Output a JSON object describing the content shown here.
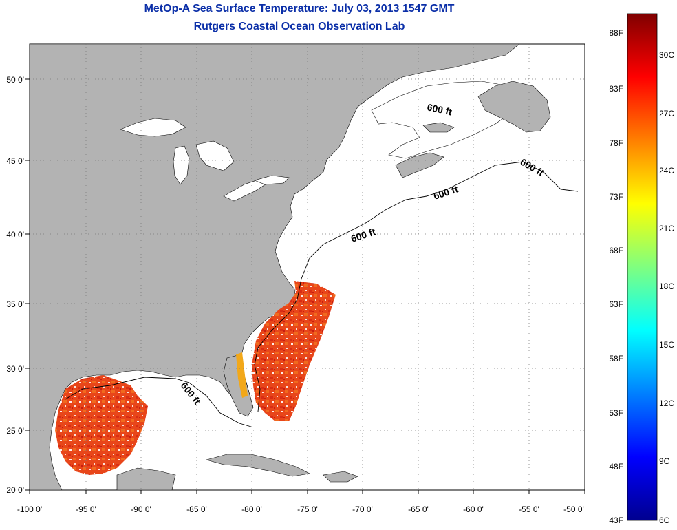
{
  "title": {
    "line1": "MetOp-A Sea Surface Temperature:  July 03, 2013 1547 GMT",
    "line2": "Rutgers Coastal Ocean Observation Lab"
  },
  "map": {
    "lon_range": [
      -100,
      -50
    ],
    "lat_range": [
      20,
      52.5
    ],
    "x_tick_labels": [
      "-100 0'",
      "-95 0'",
      "-90 0'",
      "-85 0'",
      "-80 0'",
      "-75 0'",
      "-70 0'",
      "-65 0'",
      "-60 0'",
      "-55 0'",
      "-50 0'"
    ],
    "y_tick_labels": [
      "50 0'",
      "45 0'",
      "40 0'",
      "35 0'",
      "30 0'",
      "25 0'",
      "20 0'"
    ],
    "grid": "dotted",
    "land_color": "#b3b3b3",
    "water_color": "#ffffff",
    "contour_labels": [
      "600 ft",
      "600 ft",
      "600 ft",
      "600 ft",
      "600 ft"
    ]
  },
  "colorbar": {
    "fahrenheit_labels": [
      "88F",
      "83F",
      "78F",
      "73F",
      "68F",
      "63F",
      "58F",
      "53F",
      "48F",
      "43F"
    ],
    "celsius_labels": [
      "30C",
      "27C",
      "24C",
      "21C",
      "18C",
      "15C",
      "12C",
      "9C",
      "6C"
    ],
    "colormap": "jet"
  }
}
